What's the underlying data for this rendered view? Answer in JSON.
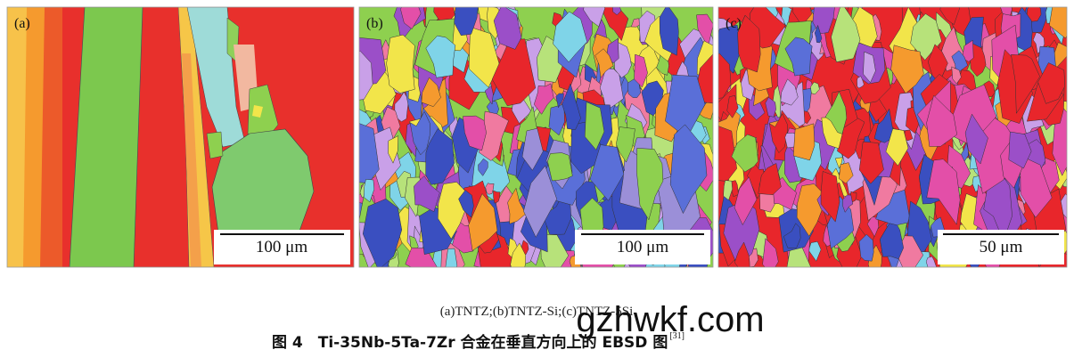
{
  "panels": [
    {
      "label": "(a)",
      "scale": "100 μm"
    },
    {
      "label": "(b)",
      "scale": "100 μm"
    },
    {
      "label": "(c)",
      "scale": "50 μm"
    }
  ],
  "caption": "(a)TNTZ;(b)TNTZ-Si;(c)TNTZ-5Si",
  "title": "图 4　Ti-35Nb-5Ta-7Zr 合金在垂直方向上的 EBSD 图",
  "reference": "[31]",
  "watermark": "gzhwkf.com"
}
